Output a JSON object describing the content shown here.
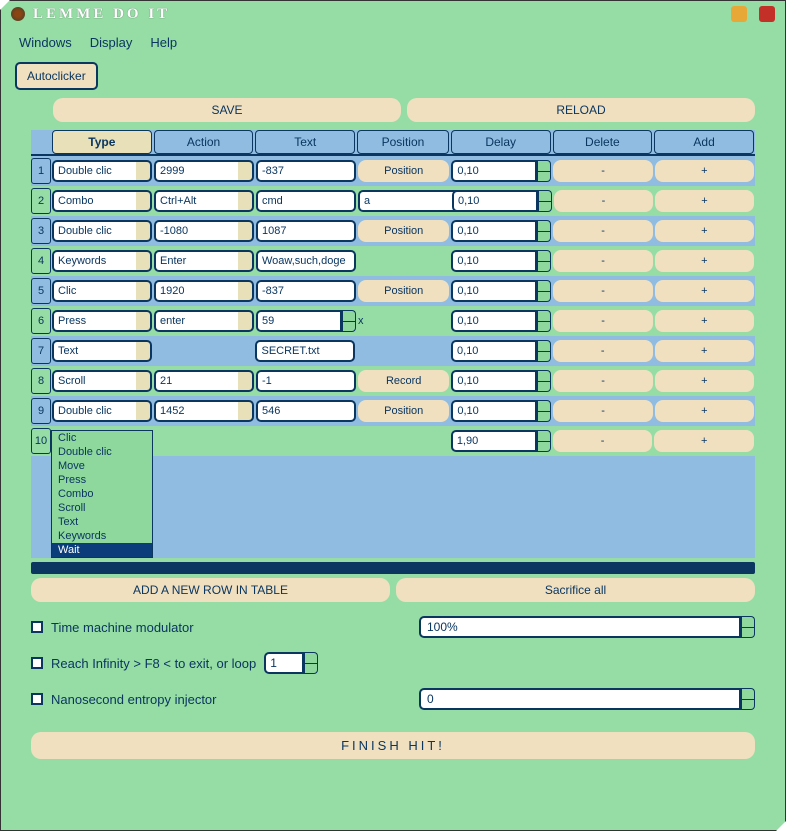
{
  "app": {
    "title": "LEMME DO IT"
  },
  "menu": {
    "windows": "Windows",
    "display": "Display",
    "help": "Help"
  },
  "toolbar": {
    "autoclicker": "Autoclicker"
  },
  "buttons": {
    "save": "SAVE",
    "reload": "RELOAD",
    "addrow": "ADD A NEW ROW IN TABLE",
    "sacrifice": "Sacrifice all",
    "finish": "FINISH HIT!"
  },
  "columns": {
    "type": "Type",
    "action": "Action",
    "text": "Text",
    "position": "Position",
    "delay": "Delay",
    "delete": "Delete",
    "add": "Add"
  },
  "row_buttons": {
    "position": "Position",
    "record": "Record",
    "delete": "-",
    "add": "+"
  },
  "rows": [
    {
      "n": "1",
      "type": "Double clic",
      "action": "2999",
      "text": "-837",
      "pos_mode": "button",
      "pos_label": "Position",
      "delay": "0,10"
    },
    {
      "n": "2",
      "type": "Combo",
      "action": "Ctrl+Alt",
      "text": "cmd",
      "pos_mode": "combo",
      "pos_val": "a",
      "delay": "0,10"
    },
    {
      "n": "3",
      "type": "Double clic",
      "action": "-1080",
      "text": "1087",
      "pos_mode": "button",
      "pos_label": "Position",
      "delay": "0,10"
    },
    {
      "n": "4",
      "type": "Keywords",
      "action": "Enter",
      "text": "Woaw,such,doge",
      "pos_mode": "none",
      "delay": "0,10"
    },
    {
      "n": "5",
      "type": "Clic",
      "action": "1920",
      "text": "-837",
      "pos_mode": "button",
      "pos_label": "Position",
      "delay": "0,10"
    },
    {
      "n": "6",
      "type": "Press",
      "action": "enter",
      "text": "59",
      "text_spin": true,
      "suffix": "x",
      "pos_mode": "none",
      "delay": "0,10"
    },
    {
      "n": "7",
      "type": "Text",
      "action": "",
      "no_action": true,
      "text": "SECRET.txt",
      "pos_mode": "none",
      "delay": "0,10"
    },
    {
      "n": "8",
      "type": "Scroll",
      "action": "21",
      "text": "-1",
      "pos_mode": "button",
      "pos_label": "Record",
      "delay": "0,10"
    },
    {
      "n": "9",
      "type": "Double clic",
      "action": "1452",
      "text": "546",
      "pos_mode": "button",
      "pos_label": "Position",
      "delay": "0,10"
    },
    {
      "n": "10",
      "type": "Wait",
      "no_action": true,
      "no_text": true,
      "pos_mode": "none",
      "delay": "1,90"
    }
  ],
  "dropdown": {
    "options": [
      "Clic",
      "Double clic",
      "Move",
      "Press",
      "Combo",
      "Scroll",
      "Text",
      "Keywords",
      "Wait"
    ],
    "selected": "Wait"
  },
  "controls": {
    "time_machine": "Time machine modulator",
    "time_machine_val": "100%",
    "infinity": "Reach Infinity > F8 < to exit, or loop",
    "infinity_val": "1",
    "entropy": "Nanosecond entropy injector",
    "entropy_val": "0"
  },
  "style": {
    "bg": "#96dda5",
    "header_bg": "#8fbce0",
    "tan": "#f0e0c0",
    "border": "#0a3660",
    "text": "#0a3660"
  }
}
